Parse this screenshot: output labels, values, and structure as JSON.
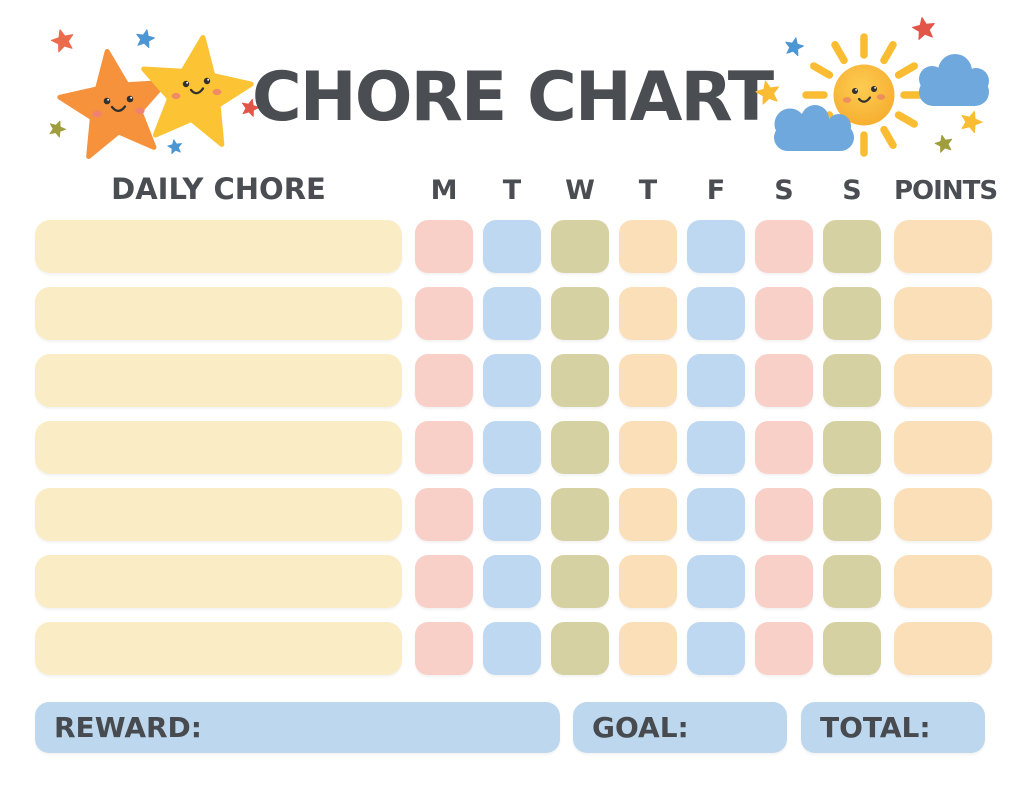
{
  "title": "CHORE CHART",
  "table": {
    "chore_header": "DAILY CHORE",
    "day_headers": [
      "M",
      "T",
      "W",
      "T",
      "F",
      "S",
      "S"
    ],
    "points_header": "POINTS",
    "row_count": 7,
    "chore_column_color": "cream",
    "day_column_colors": [
      "pink",
      "blue",
      "olive",
      "peach",
      "blue",
      "pink",
      "olive"
    ],
    "points_column_color": "peach",
    "cells_empty": true
  },
  "footer": {
    "reward_label": "REWARD:",
    "goal_label": "GOAL:",
    "total_label": "TOTAL:"
  },
  "colors": {
    "pink": "#F8D0C8",
    "blue": "#BDD8F0",
    "olive": "#D6D1A2",
    "peach": "#FBDFB8",
    "cream": "#FAEDC5",
    "footerblue": "#BCD7EE",
    "text": "#4A4D52",
    "star_orange": "#F6913C",
    "star_yellow": "#FCC434",
    "sun_yellow": "#F9BC32",
    "cloud_blue": "#6FA8DC",
    "accent_red": "#E2564A",
    "accent_redorange": "#ED6A4D",
    "accent_blue": "#4D96D4",
    "accent_olive": "#A09D3F",
    "face_dark": "#33312E",
    "blush_pink": "#EE8171",
    "blush_orange": "#EC8A60"
  },
  "decorations": {
    "left": "two smiling stars with small stars",
    "right": "smiling sun with clouds and small stars"
  }
}
